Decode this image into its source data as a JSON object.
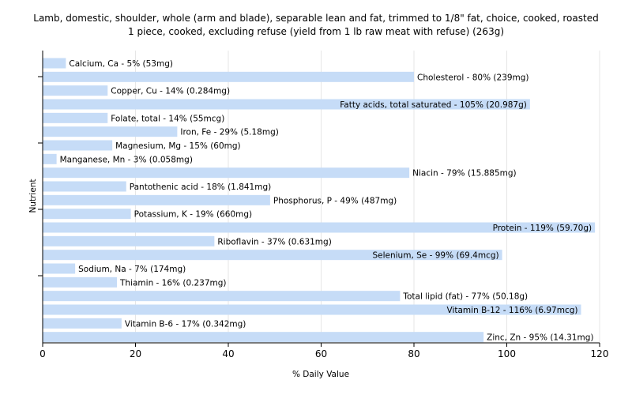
{
  "chart_data": {
    "type": "bar",
    "orientation": "horizontal",
    "title": "Lamb, domestic, shoulder, whole (arm and blade), separable lean and fat, trimmed to 1/8\" fat, choice, cooked, roasted",
    "subtitle": "1 piece, cooked, excluding refuse (yield from 1 lb raw meat with refuse) (263g)",
    "xlabel": "% Daily Value",
    "ylabel": "Nutrient",
    "xlim": [
      0,
      120
    ],
    "xticks": [
      0,
      20,
      40,
      60,
      80,
      100,
      120
    ],
    "grid": true,
    "bar_color": "#c6dcf7",
    "bars": [
      {
        "value": 5,
        "label": "Calcium, Ca - 5% (53mg)"
      },
      {
        "value": 80,
        "label": "Cholesterol - 80% (239mg)"
      },
      {
        "value": 14,
        "label": "Copper, Cu - 14% (0.284mg)"
      },
      {
        "value": 105,
        "label": "Fatty acids, total saturated - 105% (20.987g)"
      },
      {
        "value": 14,
        "label": "Folate, total - 14% (55mcg)"
      },
      {
        "value": 29,
        "label": "Iron, Fe - 29% (5.18mg)"
      },
      {
        "value": 15,
        "label": "Magnesium, Mg - 15% (60mg)"
      },
      {
        "value": 3,
        "label": "Manganese, Mn - 3% (0.058mg)"
      },
      {
        "value": 79,
        "label": "Niacin - 79% (15.885mg)"
      },
      {
        "value": 18,
        "label": "Pantothenic acid - 18% (1.841mg)"
      },
      {
        "value": 49,
        "label": "Phosphorus, P - 49% (487mg)"
      },
      {
        "value": 19,
        "label": "Potassium, K - 19% (660mg)"
      },
      {
        "value": 119,
        "label": "Protein - 119% (59.70g)"
      },
      {
        "value": 37,
        "label": "Riboflavin - 37% (0.631mg)"
      },
      {
        "value": 99,
        "label": "Selenium, Se - 99% (69.4mcg)"
      },
      {
        "value": 7,
        "label": "Sodium, Na - 7% (174mg)"
      },
      {
        "value": 16,
        "label": "Thiamin - 16% (0.237mg)"
      },
      {
        "value": 77,
        "label": "Total lipid (fat) - 77% (50.18g)"
      },
      {
        "value": 116,
        "label": "Vitamin B-12 - 116% (6.97mcg)"
      },
      {
        "value": 17,
        "label": "Vitamin B-6 - 17% (0.342mg)"
      },
      {
        "value": 95,
        "label": "Zinc, Zn - 95% (14.31mg)"
      }
    ]
  }
}
